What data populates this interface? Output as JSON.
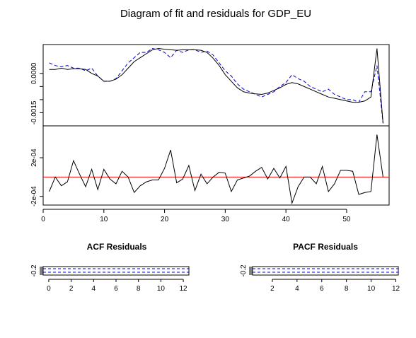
{
  "chart_data": [
    {
      "type": "line",
      "title": "Diagram of fit and residuals for GDP_EU",
      "panel": "fit",
      "ylabel": "",
      "y_tick_labels": [
        "0.0000",
        "-0.0015"
      ],
      "y_ticks": [
        0.0,
        -0.0005,
        -0.001,
        -0.0015
      ],
      "x": [
        1,
        2,
        3,
        4,
        5,
        6,
        7,
        8,
        9,
        10,
        11,
        12,
        13,
        14,
        15,
        16,
        17,
        18,
        19,
        20,
        21,
        22,
        23,
        24,
        25,
        26,
        27,
        28,
        29,
        30,
        31,
        32,
        33,
        34,
        35,
        36,
        37,
        38,
        39,
        40,
        41,
        42,
        43,
        44,
        45,
        46,
        47,
        48,
        49,
        50,
        51,
        52,
        53,
        54,
        55,
        56
      ],
      "xlim": [
        0,
        57
      ],
      "ylim": [
        -0.002,
        0.0011
      ],
      "series": [
        {
          "values": [
            0.0004,
            0.0003,
            0.00025,
            0.0003,
            0.0002,
            0.0002,
            0.0001,
            0.0002,
            -0.0001,
            -0.0003,
            -0.0003,
            -0.0002,
            0.0001,
            0.0004,
            0.0006,
            0.0008,
            0.0008,
            0.00095,
            0.0009,
            0.0008,
            0.0006,
            0.00088,
            0.0008,
            0.0009,
            0.0009,
            0.0008,
            0.00085,
            0.0007,
            0.0004,
            0.0001,
            -0.0001,
            -0.0004,
            -0.0006,
            -0.0007,
            -0.0008,
            -0.0009,
            -0.0008,
            -0.0007,
            -0.0005,
            -0.00035,
            -5e-05,
            -0.0002,
            -0.0003,
            -0.0005,
            -0.0006,
            -0.0007,
            -0.0006,
            -0.0008,
            -0.0009,
            -0.001,
            -0.001,
            -0.0011,
            -0.0007,
            -0.0007,
            0.0003,
            -0.0019
          ],
          "color": "#0000cc",
          "dash": true
        },
        {
          "values": [
            0.00015,
            0.00015,
            0.0002,
            0.00015,
            0.00018,
            0.00018,
            0.00015,
            0.0,
            -0.0001,
            -0.0003,
            -0.0003,
            -0.00022,
            -5e-05,
            0.0002,
            0.00045,
            0.0006,
            0.00075,
            0.0009,
            0.00095,
            0.00092,
            0.0009,
            0.00088,
            0.0009,
            0.0009,
            0.0009,
            0.00088,
            0.0008,
            0.00058,
            0.0003,
            -5e-05,
            -0.0003,
            -0.00055,
            -0.0007,
            -0.00075,
            -0.00078,
            -0.0008,
            -0.00075,
            -0.00065,
            -0.00055,
            -0.00042,
            -0.00035,
            -0.0004,
            -0.0005,
            -0.0006,
            -0.0007,
            -0.0008,
            -0.0009,
            -0.00095,
            -0.001,
            -0.00105,
            -0.0011,
            -0.0011,
            -0.00105,
            -0.0009,
            0.00095,
            -0.0019
          ],
          "color": "#000000",
          "dash": false
        }
      ]
    },
    {
      "type": "line",
      "panel": "residuals",
      "y_tick_labels": [
        "2e-04",
        "-2e-04"
      ],
      "y_ticks": [
        0.0002,
        -0.0002
      ],
      "x": [
        1,
        2,
        3,
        4,
        5,
        6,
        7,
        8,
        9,
        10,
        11,
        12,
        13,
        14,
        15,
        16,
        17,
        18,
        19,
        20,
        21,
        22,
        23,
        24,
        25,
        26,
        27,
        28,
        29,
        30,
        31,
        32,
        33,
        34,
        35,
        36,
        37,
        38,
        39,
        40,
        41,
        42,
        43,
        44,
        45,
        46,
        47,
        48,
        49,
        50,
        51,
        52,
        53,
        54,
        55,
        56
      ],
      "x_tick_labels": [
        "0",
        "10",
        "20",
        "30",
        "40",
        "50"
      ],
      "x_ticks": [
        0,
        10,
        20,
        30,
        40,
        50
      ],
      "xlim": [
        0,
        57
      ],
      "ylim": [
        -0.00029,
        0.00053
      ],
      "zero_line_color": "#ff0000",
      "values": [
        -0.00015,
        0.0,
        -9e-05,
        -5e-05,
        0.00017,
        3e-05,
        -0.0001,
        8e-05,
        -0.00013,
        8e-05,
        -2e-05,
        -7e-05,
        6e-05,
        0.0,
        -0.00016,
        -9e-05,
        -5e-05,
        -3e-05,
        -3e-05,
        9e-05,
        0.00028,
        -6e-05,
        -2e-05,
        0.00012,
        -0.00014,
        3e-05,
        -7e-05,
        0.0,
        5e-05,
        4e-05,
        -0.00015,
        -3e-05,
        -1e-05,
        1e-05,
        6e-05,
        0.0001,
        -2e-05,
        9e-05,
        -1e-05,
        0.00011,
        -0.00027,
        -0.0001,
        0.0,
        0.0,
        -7e-05,
        0.00011,
        -0.00015,
        -7e-05,
        7e-05,
        7e-05,
        6e-05,
        -0.00018,
        -0.00016,
        -0.00015,
        0.00044,
        0.0
      ]
    },
    {
      "type": "bar",
      "title": "ACF Residuals",
      "y_tick_labels": [
        "-0.2"
      ],
      "x_tick_labels": [
        "0",
        "2",
        "4",
        "6",
        "8",
        "10",
        "12"
      ],
      "x_ticks": [
        0,
        2,
        4,
        6,
        8,
        10,
        12
      ],
      "xlim": [
        -0.5,
        12.5
      ]
    },
    {
      "type": "bar",
      "title": "PACF Residuals",
      "y_tick_labels": [
        "-0.2"
      ],
      "x_tick_labels": [
        "2",
        "4",
        "6",
        "8",
        "10",
        "12"
      ],
      "x_ticks": [
        2,
        4,
        6,
        8,
        10,
        12
      ],
      "xlim": [
        0.4,
        12.2
      ]
    }
  ]
}
